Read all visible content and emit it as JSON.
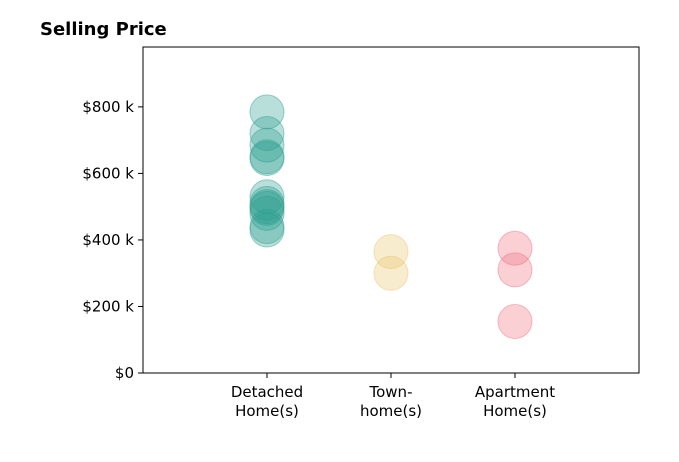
{
  "chart_data": {
    "type": "scatter",
    "title": "Selling Price",
    "xlabel": "",
    "ylabel": "",
    "categories": [
      [
        "Detached",
        "Home(s)"
      ],
      [
        "Town-",
        "home(s)"
      ],
      [
        "Apartment",
        "Home(s)"
      ]
    ],
    "xlim": [
      0,
      4
    ],
    "ylim": [
      0,
      980
    ],
    "yticks": [
      0,
      200,
      400,
      600,
      800
    ],
    "ytick_labels": [
      "$0",
      "$200 k",
      "$400 k",
      "$600 k",
      "$800 k"
    ],
    "grid": false,
    "series": [
      {
        "category_index": 0,
        "color": "#2a9d8f",
        "values": [
          785,
          720,
          685,
          650,
          645,
          530,
          510,
          500,
          495,
          480,
          440,
          430
        ]
      },
      {
        "category_index": 1,
        "color": "#e9c46a",
        "values": [
          365,
          300
        ]
      },
      {
        "category_index": 2,
        "color": "#f07080",
        "values": [
          375,
          310,
          155
        ]
      }
    ]
  }
}
